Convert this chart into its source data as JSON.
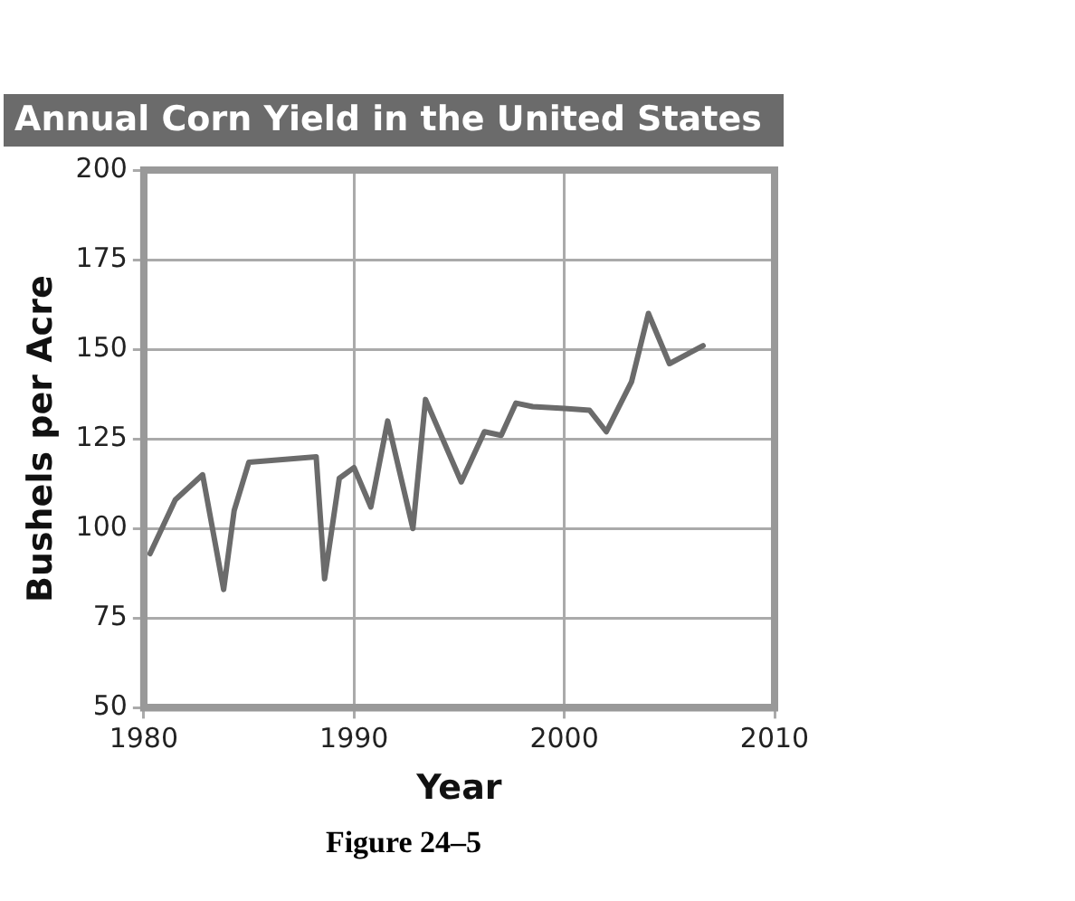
{
  "chart_data": {
    "type": "line",
    "title": "Annual Corn Yield in the United States",
    "xlabel": "Year",
    "ylabel": "Bushels per Acre",
    "annotations": [
      "Figure 24–5"
    ],
    "x": [
      1980.3,
      1981.5,
      1982.8,
      1983.8,
      1984.3,
      1985,
      1988.2,
      1988.6,
      1989.3,
      1990,
      1990.8,
      1991.6,
      1992.8,
      1993.4,
      1995.1,
      1996.2,
      1997,
      1997.7,
      1998.5,
      2000,
      2001.2,
      2002,
      2003.2,
      2004,
      2005,
      2006.6
    ],
    "series": [
      {
        "color": "#6b6b6b",
        "values": [
          93,
          108,
          115,
          83,
          105,
          118.5,
          120,
          86,
          114,
          117,
          106,
          130,
          100,
          136,
          113,
          127,
          126,
          135,
          134,
          133.5,
          133,
          127,
          141,
          160,
          146,
          151
        ]
      }
    ],
    "xlim": [
      1980,
      2010
    ],
    "xticks": [
      1980,
      1990,
      2000,
      2010
    ],
    "ylim": [
      50,
      200
    ],
    "yticks": [
      50,
      75,
      100,
      125,
      150,
      175,
      200
    ],
    "grid": true,
    "legend": false,
    "marker": "none",
    "line_style": "solid"
  }
}
